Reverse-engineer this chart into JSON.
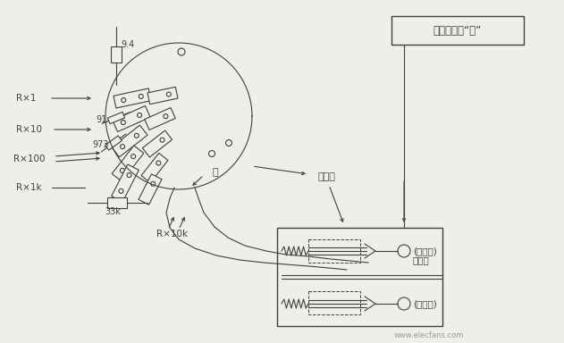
{
  "bg_color": "#f0eeea",
  "line_color": "#404040",
  "box_label": "至升压电路“地”",
  "label_jy": "绵缘板",
  "label_upper_contact1": "(上触点)",
  "label_upper_contact2": "新加的",
  "label_lower_contact": "(下触点)",
  "label_kong": "空",
  "label_rx1": "R×1",
  "label_rx10": "R×10",
  "label_rx100": "R×100",
  "label_rx1k": "R×1k",
  "label_rx10k": "R×10k",
  "label_94": "9.4",
  "label_91": "91",
  "label_973": "973",
  "label_33k": "33k",
  "watermark": "www.elecfans.com"
}
